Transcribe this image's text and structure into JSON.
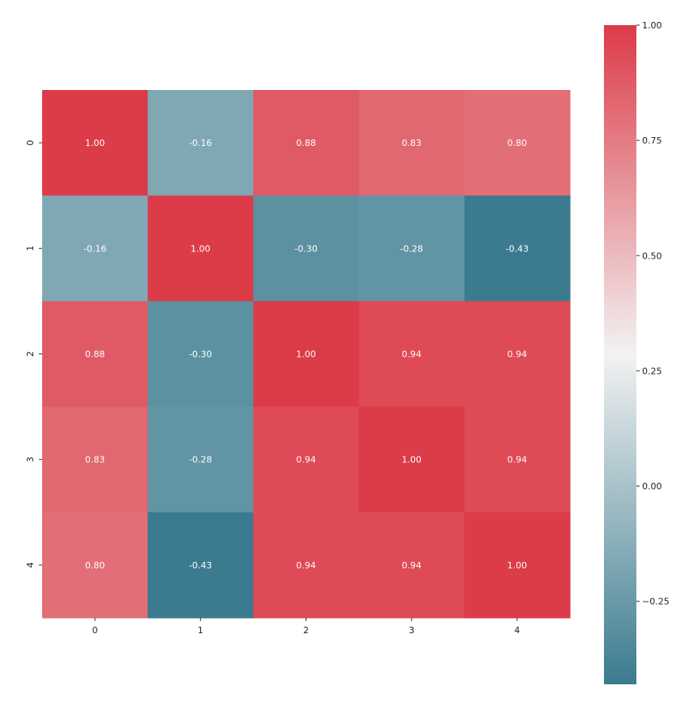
{
  "chart_data": {
    "type": "heatmap",
    "title": "",
    "xlabel": "",
    "ylabel": "",
    "x_labels": [
      "0",
      "1",
      "2",
      "3",
      "4"
    ],
    "y_labels": [
      "0",
      "1",
      "2",
      "3",
      "4"
    ],
    "matrix": [
      [
        1.0,
        -0.16,
        0.88,
        0.83,
        0.8
      ],
      [
        -0.16,
        1.0,
        -0.3,
        -0.28,
        -0.43
      ],
      [
        0.88,
        -0.3,
        1.0,
        0.94,
        0.94
      ],
      [
        0.83,
        -0.28,
        0.94,
        1.0,
        0.94
      ],
      [
        0.8,
        -0.43,
        0.94,
        0.94,
        1.0
      ]
    ],
    "annotations": [
      [
        "1.00",
        "-0.16",
        "0.88",
        "0.83",
        "0.80"
      ],
      [
        "-0.16",
        "1.00",
        "-0.30",
        "-0.28",
        "-0.43"
      ],
      [
        "0.88",
        "-0.30",
        "1.00",
        "0.94",
        "0.94"
      ],
      [
        "0.83",
        "-0.28",
        "0.94",
        "1.00",
        "0.94"
      ],
      [
        "0.80",
        "-0.43",
        "0.94",
        "0.94",
        "1.00"
      ]
    ],
    "color_range": [
      -0.43,
      1.0
    ],
    "colorbar_ticks": [
      {
        "value": 1.0,
        "label": "1.00"
      },
      {
        "value": 0.75,
        "label": "0.75"
      },
      {
        "value": 0.5,
        "label": "0.50"
      },
      {
        "value": 0.25,
        "label": "0.25"
      },
      {
        "value": 0.0,
        "label": "0.00"
      },
      {
        "value": -0.25,
        "label": "−0.25"
      }
    ],
    "colormap": {
      "low": "#3b7b8f",
      "center": "#f2f2f2",
      "high": "#dc3b48",
      "center_value": 0.285
    },
    "annotation_color": "#ffffff",
    "legend_position": "right colorbar",
    "grid": false
  }
}
